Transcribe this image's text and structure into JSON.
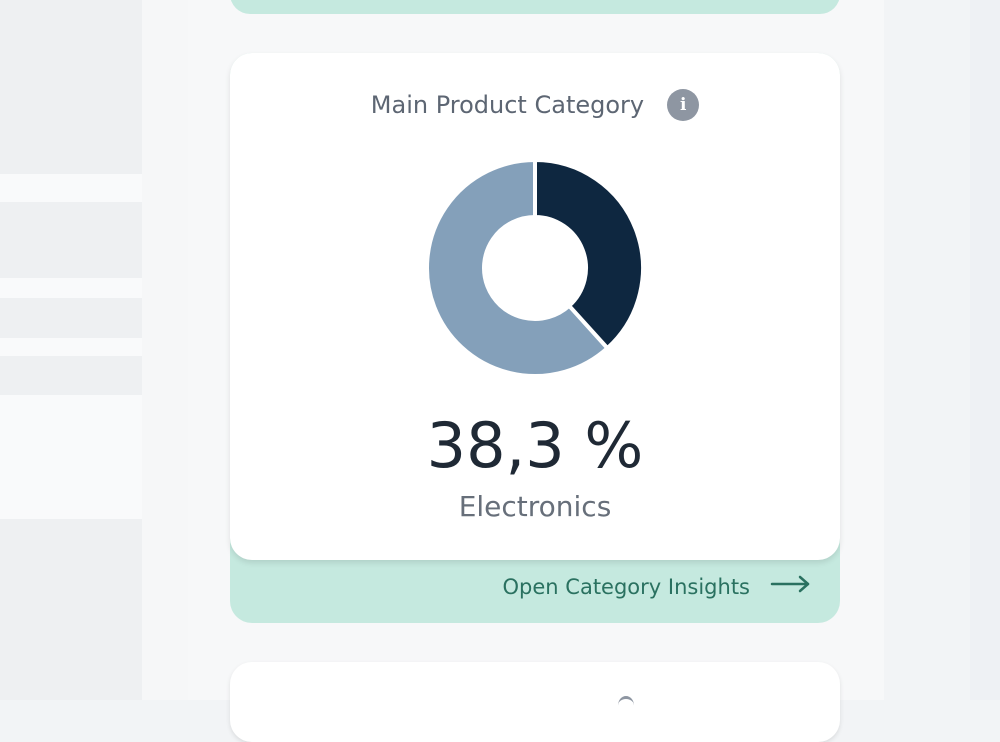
{
  "category_card": {
    "title": "Main Product Category",
    "info_icon": "info-icon",
    "percentage": "38,3 %",
    "category": "Electronics",
    "share_fraction": 0.383,
    "colors": {
      "highlight": "#0e2740",
      "rest": "#84a0ba"
    }
  },
  "footer": {
    "link_label": "Open Category Insights",
    "link_icon": "arrow-right-icon"
  }
}
